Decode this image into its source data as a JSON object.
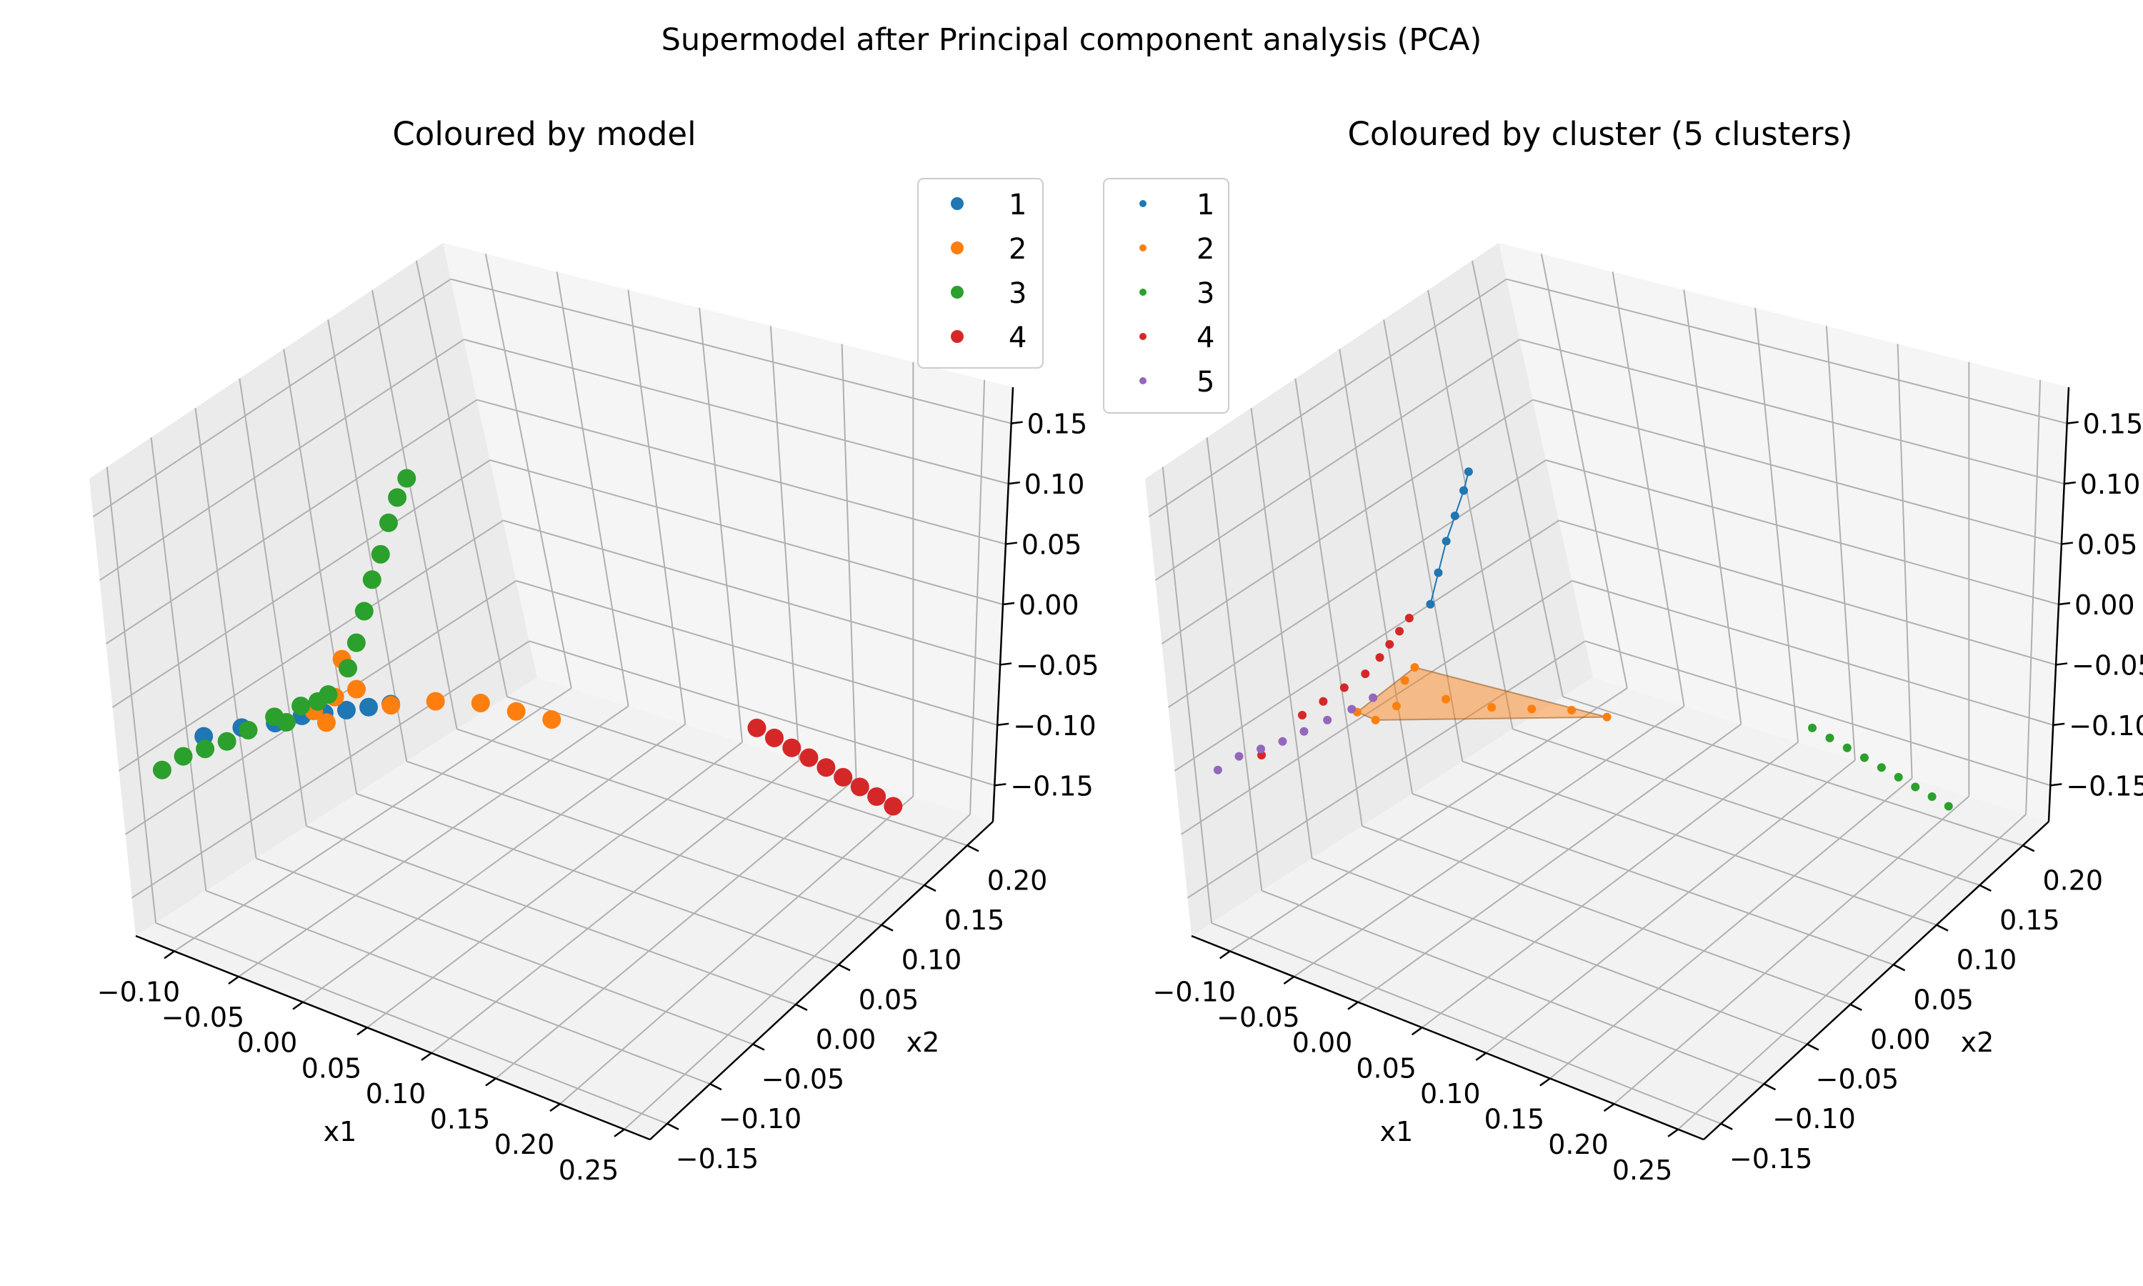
{
  "figure": {
    "title": "Supermodel after Principal component analysis (PCA)"
  },
  "chart_data": [
    {
      "type": "scatter",
      "projection": "3d",
      "title": "Coloured by model",
      "xlabel": "x1",
      "ylabel": "x2",
      "zlabel": "",
      "xlim": [
        -0.13,
        0.27
      ],
      "ylim": [
        -0.17,
        0.23
      ],
      "zlim": [
        -0.18,
        0.18
      ],
      "xticks": [
        "−0.10",
        "−0.05",
        "0.00",
        "0.05",
        "0.10",
        "0.15",
        "0.20",
        "0.25"
      ],
      "yticks": [
        "−0.15",
        "−0.10",
        "−0.05",
        "0.00",
        "0.05",
        "0.10",
        "0.15",
        "0.20"
      ],
      "zticks": [
        "−0.15",
        "−0.10",
        "−0.05",
        "0.00",
        "0.05",
        "0.10",
        "0.15"
      ],
      "grid": true,
      "legend_position": "top-right",
      "series": [
        {
          "name": "1",
          "color": "#1f77b4",
          "points": [
            [
              -0.1,
              -0.12,
              -0.035
            ],
            [
              -0.085,
              -0.1,
              -0.032
            ],
            [
              -0.07,
              -0.085,
              -0.03
            ],
            [
              -0.06,
              -0.07,
              -0.028
            ],
            [
              -0.05,
              -0.06,
              -0.027
            ],
            [
              -0.04,
              -0.05,
              -0.026
            ],
            [
              -0.03,
              -0.04,
              -0.025
            ],
            [
              -0.02,
              -0.03,
              -0.024
            ]
          ]
        },
        {
          "name": "2",
          "color": "#ff7f0e",
          "points": [
            [
              -0.04,
              -0.06,
              -0.01
            ],
            [
              -0.035,
              -0.055,
              0.02
            ],
            [
              -0.03,
              -0.05,
              -0.005
            ],
            [
              -0.05,
              -0.07,
              -0.02
            ],
            [
              -0.02,
              -0.03,
              -0.025
            ],
            [
              0.0,
              -0.01,
              -0.025
            ],
            [
              0.02,
              0.01,
              -0.03
            ],
            [
              0.04,
              0.02,
              -0.035
            ],
            [
              0.06,
              0.03,
              -0.04
            ],
            [
              -0.045,
              -0.065,
              -0.03
            ]
          ]
        },
        {
          "name": "3",
          "color": "#2ca02c",
          "points": [
            [
              -0.12,
              -0.14,
              -0.06
            ],
            [
              -0.11,
              -0.13,
              -0.05
            ],
            [
              -0.1,
              -0.12,
              -0.045
            ],
            [
              -0.09,
              -0.11,
              -0.04
            ],
            [
              -0.08,
              -0.1,
              -0.032
            ],
            [
              -0.07,
              -0.085,
              -0.025
            ],
            [
              -0.06,
              -0.07,
              -0.02
            ],
            [
              -0.045,
              -0.06,
              -0.01
            ],
            [
              -0.035,
              -0.05,
              0.01
            ],
            [
              -0.03,
              -0.045,
              0.03
            ],
            [
              -0.025,
              -0.04,
              0.055
            ],
            [
              -0.02,
              -0.035,
              0.08
            ],
            [
              -0.015,
              -0.03,
              0.1
            ],
            [
              -0.01,
              -0.025,
              0.125
            ],
            [
              -0.005,
              -0.02,
              0.145
            ],
            [
              0.0,
              -0.015,
              0.16
            ],
            [
              -0.05,
              -0.065,
              -0.015
            ],
            [
              -0.065,
              -0.08,
              -0.03
            ]
          ]
        },
        {
          "name": "4",
          "color": "#d62728",
          "points": [
            [
              0.17,
              0.1,
              -0.05
            ],
            [
              0.18,
              0.105,
              -0.058
            ],
            [
              0.19,
              0.11,
              -0.066
            ],
            [
              0.2,
              0.115,
              -0.074
            ],
            [
              0.21,
              0.12,
              -0.082
            ],
            [
              0.22,
              0.125,
              -0.09
            ],
            [
              0.23,
              0.13,
              -0.098
            ],
            [
              0.24,
              0.135,
              -0.106
            ],
            [
              0.25,
              0.14,
              -0.114
            ]
          ]
        }
      ]
    },
    {
      "type": "scatter",
      "projection": "3d",
      "title": "Coloured by cluster (5 clusters)",
      "xlabel": "x1",
      "ylabel": "x2",
      "zlabel": "",
      "xlim": [
        -0.13,
        0.27
      ],
      "ylim": [
        -0.17,
        0.23
      ],
      "zlim": [
        -0.18,
        0.18
      ],
      "xticks": [
        "−0.10",
        "−0.05",
        "0.00",
        "0.05",
        "0.10",
        "0.15",
        "0.20",
        "0.25"
      ],
      "yticks": [
        "−0.15",
        "−0.10",
        "−0.05",
        "0.00",
        "0.05",
        "0.10",
        "0.15",
        "0.20"
      ],
      "zticks": [
        "−0.15",
        "−0.10",
        "−0.05",
        "0.00",
        "0.05",
        "0.10",
        "0.15"
      ],
      "grid": true,
      "legend_position": "top-left",
      "series": [
        {
          "name": "1",
          "color": "#1f77b4",
          "points": [
            [
              -0.02,
              -0.035,
              0.06
            ],
            [
              -0.015,
              -0.03,
              0.085
            ],
            [
              -0.01,
              -0.025,
              0.11
            ],
            [
              -0.005,
              -0.02,
              0.13
            ],
            [
              0.0,
              -0.015,
              0.15
            ],
            [
              0.003,
              -0.012,
              0.165
            ]
          ]
        },
        {
          "name": "2",
          "color": "#ff7f0e",
          "points": [
            [
              -0.06,
              -0.07,
              -0.025
            ],
            [
              -0.04,
              -0.055,
              -0.02
            ],
            [
              -0.035,
              -0.05,
              0.0
            ],
            [
              -0.03,
              -0.045,
              0.01
            ],
            [
              -0.02,
              -0.03,
              -0.02
            ],
            [
              0.0,
              -0.01,
              -0.03
            ],
            [
              0.02,
              0.005,
              -0.032
            ],
            [
              0.04,
              0.02,
              -0.034
            ],
            [
              0.06,
              0.03,
              -0.038
            ],
            [
              -0.05,
              -0.065,
              -0.03
            ]
          ]
        },
        {
          "name": "3",
          "color": "#2ca02c",
          "points": [
            [
              0.17,
              0.1,
              -0.05
            ],
            [
              0.18,
              0.105,
              -0.058
            ],
            [
              0.19,
              0.11,
              -0.066
            ],
            [
              0.2,
              0.115,
              -0.074
            ],
            [
              0.21,
              0.12,
              -0.082
            ],
            [
              0.22,
              0.125,
              -0.09
            ],
            [
              0.23,
              0.13,
              -0.098
            ],
            [
              0.24,
              0.135,
              -0.106
            ],
            [
              0.25,
              0.14,
              -0.114
            ]
          ]
        },
        {
          "name": "4",
          "color": "#d62728",
          "points": [
            [
              -0.08,
              -0.1,
              -0.02
            ],
            [
              -0.07,
              -0.09,
              -0.01
            ],
            [
              -0.06,
              -0.08,
              0.0
            ],
            [
              -0.05,
              -0.07,
              0.01
            ],
            [
              -0.045,
              -0.06,
              0.02
            ],
            [
              -0.04,
              -0.055,
              0.03
            ],
            [
              -0.035,
              -0.05,
              0.04
            ],
            [
              -0.03,
              -0.045,
              0.05
            ],
            [
              -0.1,
              -0.12,
              -0.05
            ]
          ]
        },
        {
          "name": "5",
          "color": "#9467bd",
          "points": [
            [
              -0.12,
              -0.14,
              -0.06
            ],
            [
              -0.11,
              -0.13,
              -0.05
            ],
            [
              -0.1,
              -0.12,
              -0.045
            ],
            [
              -0.09,
              -0.11,
              -0.04
            ],
            [
              -0.08,
              -0.1,
              -0.033
            ],
            [
              -0.07,
              -0.088,
              -0.026
            ],
            [
              -0.06,
              -0.075,
              -0.02
            ],
            [
              -0.05,
              -0.065,
              -0.012
            ]
          ]
        }
      ]
    }
  ]
}
